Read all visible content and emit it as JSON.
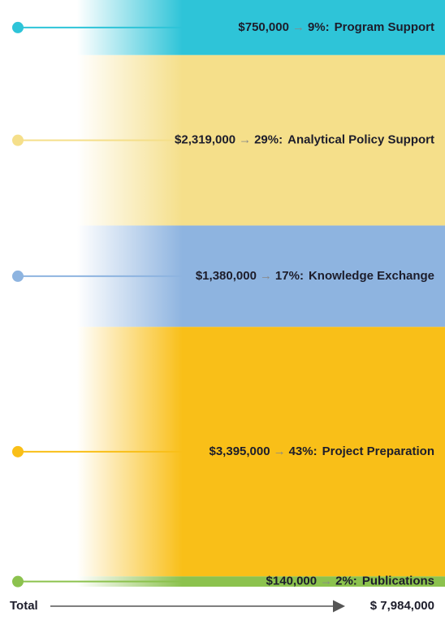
{
  "chart_data": {
    "type": "stacked",
    "categories": [
      "Program Support",
      "Analytical Policy Support",
      "Knowledge Exchange",
      "Project Preparation",
      "Publications"
    ],
    "values": [
      750000,
      2319000,
      1380000,
      3395000,
      140000
    ],
    "value_labels": [
      "$750,000",
      "$2,319,000",
      "$1,380,000",
      "$3,395,000",
      "$140,000"
    ],
    "percent_labels": [
      "9%:",
      "29%:",
      "17%:",
      "43%:",
      "2%:"
    ],
    "separator": "→",
    "colors": [
      "#2ec4d8",
      "#f5df8a",
      "#8eb4e0",
      "#f9bf18",
      "#8cc24e"
    ],
    "total_text": "Total",
    "total": 7984000,
    "total_label": "$ 7,984,000"
  }
}
